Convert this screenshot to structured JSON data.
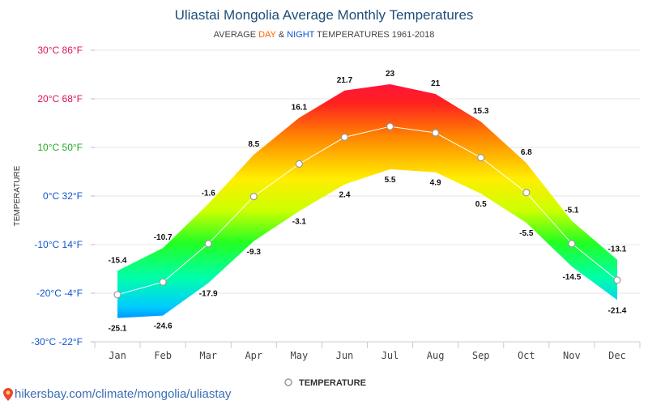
{
  "chart_data": {
    "type": "area",
    "title": "Uliastai Mongolia Average Monthly Temperatures",
    "subtitle_parts": [
      {
        "text": "AVERAGE ",
        "color": "#444444"
      },
      {
        "text": "DAY",
        "color": "#ff6600"
      },
      {
        "text": " & ",
        "color": "#444444"
      },
      {
        "text": "NIGHT",
        "color": "#1155cc"
      },
      {
        "text": " TEMPERATURES 1961-2018",
        "color": "#444444"
      }
    ],
    "ylabel": "TEMPERATURE",
    "ylim": [
      -30,
      30
    ],
    "y_ticks": [
      {
        "value": 30,
        "label": "30°C 86°F",
        "color": "#e0105a"
      },
      {
        "value": 20,
        "label": "20°C 68°F",
        "color": "#e0105a"
      },
      {
        "value": 10,
        "label": "10°C 50°F",
        "color": "#22aa22"
      },
      {
        "value": 0,
        "label": "0°C 32°F",
        "color": "#1155cc"
      },
      {
        "value": -10,
        "label": "-10°C 14°F",
        "color": "#1155cc"
      },
      {
        "value": -20,
        "label": "-20°C -4°F",
        "color": "#1155cc"
      },
      {
        "value": -30,
        "label": "-30°C -22°F",
        "color": "#1155cc"
      }
    ],
    "categories": [
      "Jan",
      "Feb",
      "Mar",
      "Apr",
      "May",
      "Jun",
      "Jul",
      "Aug",
      "Sep",
      "Oct",
      "Nov",
      "Dec"
    ],
    "day": [
      -15.4,
      -10.7,
      -1.6,
      8.5,
      16.1,
      21.7,
      23,
      21,
      15.3,
      6.8,
      -5.1,
      -13.1
    ],
    "night": [
      -25.1,
      -24.6,
      -17.9,
      -9.3,
      -3.1,
      2.4,
      5.5,
      4.9,
      0.5,
      -5.5,
      -14.5,
      -21.4
    ],
    "series": [
      {
        "name": "TEMPERATURE",
        "values": [
          -20.3,
          -17.7,
          -9.8,
          -0.1,
          6.6,
          12.1,
          14.3,
          13.0,
          7.9,
          0.7,
          -9.8,
          -17.3
        ]
      }
    ],
    "legend_position": "bottom-center",
    "grid": true,
    "colors": {
      "line": "#ffffff",
      "marker_stroke": "#999999"
    }
  },
  "footer": {
    "text": "hikersbay.com/climate/mongolia/uliastay"
  }
}
